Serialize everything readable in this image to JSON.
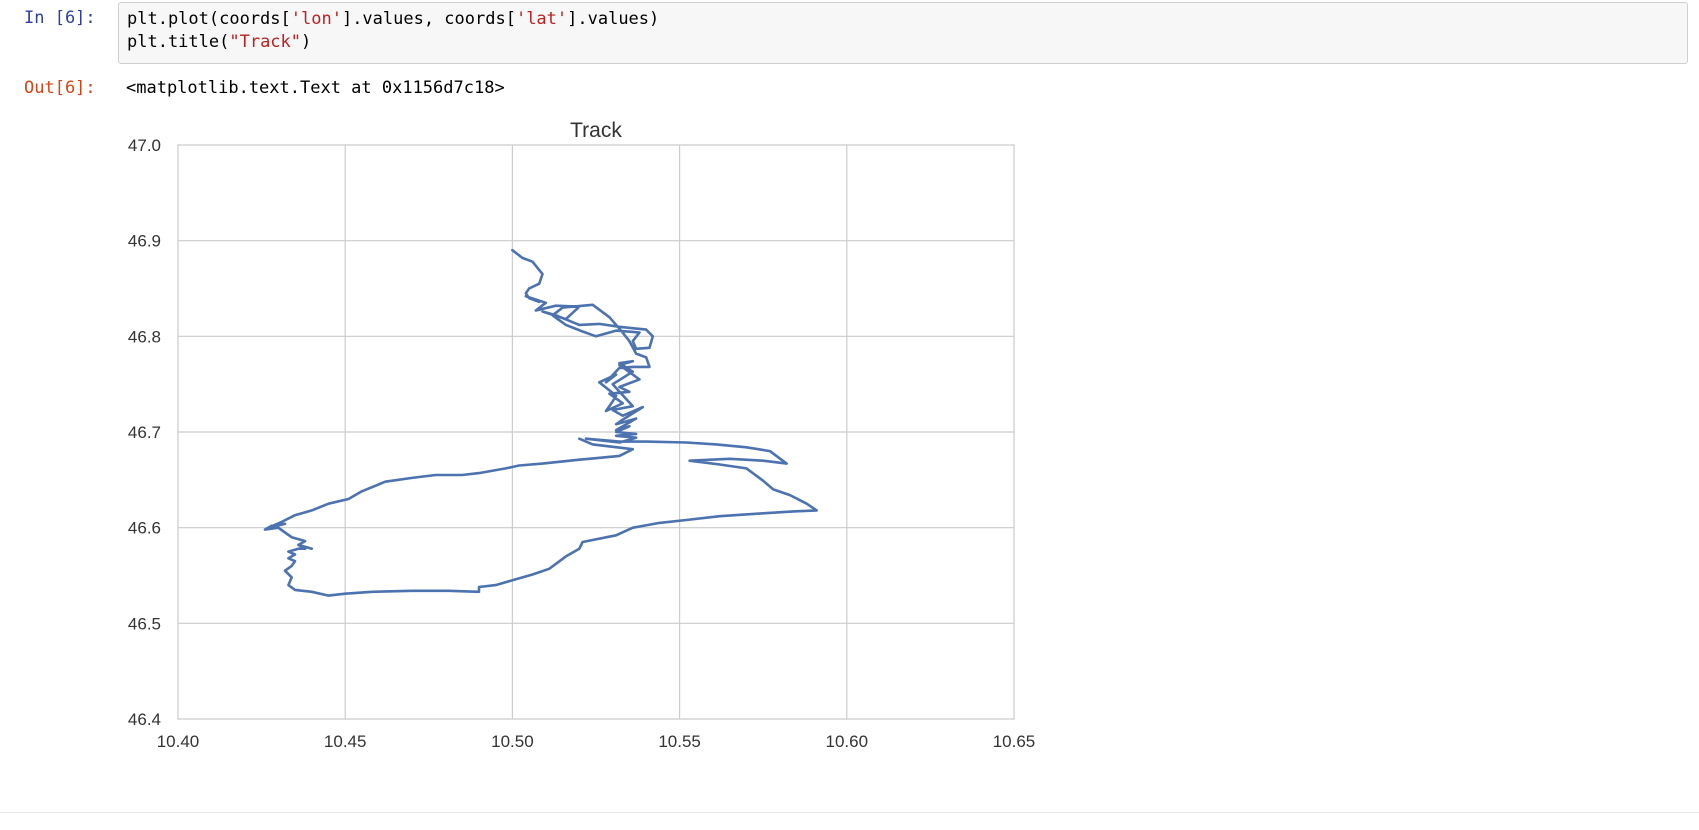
{
  "cell": {
    "in_prompt": "In [6]:",
    "out_prompt": "Out[6]:",
    "code": {
      "l1_a": "plt.plot(coords[",
      "l1_s1": "'lon'",
      "l1_b": "].values, coords[",
      "l1_s2": "'lat'",
      "l1_c": "].values)",
      "l2_a": "plt.title(",
      "l2_s": "\"Track\"",
      "l2_b": ")"
    },
    "output_text": "<matplotlib.text.Text at 0x1156d7c18>"
  },
  "colors": {
    "line": "#4c72b0",
    "grid": "#cccccc",
    "in_prompt": "#303f9f",
    "out_prompt": "#d84315",
    "string": "#ba2121"
  },
  "chart_data": {
    "type": "line",
    "title": "Track",
    "xlabel": "",
    "ylabel": "",
    "xlim": [
      10.4,
      10.65
    ],
    "ylim": [
      46.4,
      47.0
    ],
    "xticks": [
      "10.40",
      "10.45",
      "10.50",
      "10.55",
      "10.60",
      "10.65"
    ],
    "yticks": [
      "46.4",
      "46.5",
      "46.6",
      "46.7",
      "46.8",
      "46.9",
      "47.0"
    ],
    "grid": true,
    "series": [
      {
        "x": [
          10.5,
          10.503,
          10.506,
          10.509,
          10.508,
          10.505,
          10.504,
          10.505,
          10.508,
          10.504,
          10.51,
          10.507,
          10.513,
          10.52,
          10.516,
          10.509,
          10.513,
          10.52,
          10.526,
          10.532,
          10.54,
          10.542,
          10.541,
          10.537,
          10.536,
          10.538,
          10.531,
          10.525,
          10.521,
          10.516,
          10.512,
          10.515,
          10.524,
          10.529,
          10.532,
          10.535,
          10.537,
          10.54,
          10.541,
          10.536,
          10.532,
          10.528,
          10.531,
          10.526,
          10.531,
          10.53,
          10.528,
          10.533,
          10.529,
          10.535,
          10.532,
          10.538,
          10.536,
          10.532,
          10.536,
          10.532,
          10.536,
          10.53,
          10.536,
          10.53,
          10.533,
          10.539,
          10.533,
          10.531,
          10.537,
          10.531,
          10.535,
          10.531,
          10.537,
          10.531,
          10.537,
          10.532,
          10.522,
          10.532,
          10.54,
          10.552,
          10.561,
          10.57,
          10.577,
          10.582,
          10.575,
          10.565,
          10.553,
          10.562,
          10.57,
          10.575,
          10.578,
          10.583,
          10.588,
          10.591,
          10.584,
          10.575,
          10.562,
          10.552,
          10.544,
          10.536,
          10.531,
          10.521,
          10.52,
          10.516,
          10.511,
          10.506,
          10.5,
          10.495,
          10.49,
          10.49,
          10.481,
          10.47,
          10.458,
          10.45,
          10.445,
          10.44,
          10.435,
          10.433,
          10.434,
          10.432,
          10.434,
          10.435,
          10.433,
          10.435,
          10.433,
          10.436,
          10.438,
          10.436,
          10.44,
          10.436,
          10.438,
          10.434,
          10.432,
          10.43,
          10.426,
          10.428,
          10.432,
          10.427,
          10.431,
          10.435,
          10.44,
          10.445,
          10.451,
          10.455,
          10.462,
          10.47,
          10.477,
          10.485,
          10.49,
          10.498,
          10.502,
          10.509,
          10.52,
          10.523,
          10.532,
          10.536,
          10.524,
          10.52
        ],
        "y": [
          46.89,
          46.882,
          46.878,
          46.865,
          46.855,
          46.85,
          46.845,
          46.84,
          46.836,
          46.842,
          46.835,
          46.827,
          46.832,
          46.831,
          46.818,
          46.826,
          46.822,
          46.812,
          46.813,
          46.81,
          46.807,
          46.8,
          46.788,
          46.787,
          46.795,
          46.804,
          46.806,
          46.8,
          46.805,
          46.812,
          46.822,
          46.83,
          46.833,
          46.82,
          46.808,
          46.795,
          46.782,
          46.778,
          46.768,
          46.768,
          46.767,
          46.752,
          46.76,
          46.752,
          46.738,
          46.732,
          46.722,
          46.73,
          46.74,
          46.742,
          46.747,
          46.755,
          46.76,
          46.77,
          46.774,
          46.772,
          46.763,
          46.75,
          46.727,
          46.723,
          46.717,
          46.726,
          46.713,
          46.708,
          46.714,
          46.702,
          46.706,
          46.7,
          46.698,
          46.696,
          46.694,
          46.689,
          46.693,
          46.69,
          46.69,
          46.689,
          46.687,
          46.684,
          46.68,
          46.667,
          46.67,
          46.672,
          46.67,
          46.666,
          46.662,
          46.649,
          46.64,
          46.634,
          46.625,
          46.618,
          46.617,
          46.615,
          46.612,
          46.608,
          46.605,
          46.6,
          46.592,
          46.585,
          46.578,
          46.57,
          46.557,
          46.551,
          46.545,
          46.54,
          46.538,
          46.533,
          46.534,
          46.534,
          46.533,
          46.531,
          46.529,
          46.533,
          46.535,
          46.54,
          46.548,
          46.555,
          46.56,
          46.565,
          46.568,
          46.572,
          46.575,
          46.578,
          46.578,
          46.582,
          46.578,
          46.582,
          46.586,
          46.59,
          46.595,
          46.6,
          46.598,
          46.602,
          46.604,
          46.6,
          46.606,
          46.613,
          46.618,
          46.625,
          46.63,
          46.638,
          46.648,
          46.652,
          46.655,
          46.655,
          46.657,
          46.662,
          46.665,
          46.667,
          46.671,
          46.672,
          46.675,
          46.682,
          46.687,
          46.693
        ]
      }
    ]
  }
}
